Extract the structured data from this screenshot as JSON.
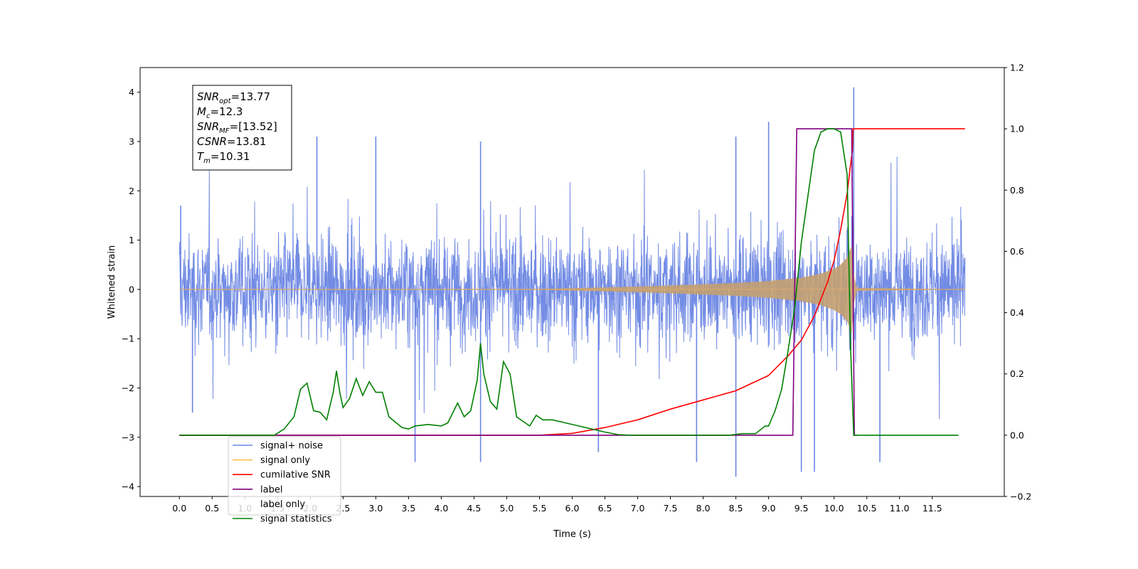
{
  "chart_data": {
    "type": "line",
    "title": "",
    "xlabel": "Time (s)",
    "ylabel_left": "Whitened strain",
    "ylabel_right": "",
    "xlim": [
      -0.6,
      12.6
    ],
    "ylim_left": [
      -4.2,
      4.5
    ],
    "ylim_right": [
      -0.2,
      1.2
    ],
    "x_ticks": [
      0.0,
      0.5,
      1.0,
      1.5,
      2.0,
      2.5,
      3.0,
      3.5,
      4.0,
      4.5,
      5.0,
      5.5,
      6.0,
      6.5,
      7.0,
      7.5,
      8.0,
      8.5,
      9.0,
      9.5,
      10.0,
      10.5,
      11.0,
      11.5
    ],
    "x_tick_labels": [
      "0.0",
      "0.5",
      "1.0",
      "1.5",
      "2.0",
      "2.5",
      "3.0",
      "3.5",
      "4.0",
      "4.5",
      "5.0",
      "5.5",
      "6.0",
      "6.5",
      "7.0",
      "7.5",
      "8.0",
      "8.5",
      "9.0",
      "9.5",
      "10.0",
      "10.5",
      "11.0",
      "11.5"
    ],
    "y_left_ticks": [
      -4,
      -3,
      -2,
      -1,
      0,
      1,
      2,
      3,
      4
    ],
    "y_left_tick_labels": [
      "−4",
      "−3",
      "−2",
      "−1",
      "0",
      "1",
      "2",
      "3",
      "4"
    ],
    "y_right_ticks": [
      -0.2,
      0.0,
      0.2,
      0.4,
      0.6,
      0.8,
      1.0,
      1.2
    ],
    "y_right_tick_labels": [
      "−0.2",
      "0.0",
      "0.2",
      "0.4",
      "0.6",
      "0.8",
      "1.0",
      "1.2"
    ],
    "grid": false,
    "legend_placement": "lower-left",
    "stats_box": [
      {
        "base": "SNR",
        "sub": "opt",
        "value": "=13.77"
      },
      {
        "base": "M",
        "sub": "c",
        "value": "=12.3"
      },
      {
        "base": "SNR",
        "sub": "MF",
        "value": "=[13.52]"
      },
      {
        "base": "CSNR",
        "sub": "",
        "value": "=13.81"
      },
      {
        "base": "T",
        "sub": "m",
        "value": "=10.31"
      }
    ],
    "series": [
      {
        "name": "signal+ noise",
        "color": "#6b86e3",
        "axis": "left",
        "description_values": "noisy whitened strain, amplitude about ±2.3 with spikes to 4.1 near t=10.3",
        "peak_x": [
          0.02,
          2.1,
          3.0,
          4.6,
          8.5,
          9.0,
          10.3
        ],
        "peak_y": [
          1.7,
          3.1,
          3.1,
          3.0,
          3.1,
          3.4,
          4.1
        ],
        "trough_x": [
          0.2,
          3.6,
          4.6,
          6.4,
          7.9,
          8.5,
          9.5,
          9.7,
          10.7
        ],
        "trough_y": [
          -2.5,
          -3.5,
          -3.5,
          -3.3,
          -3.5,
          -3.8,
          -3.7,
          -3.7,
          -3.5
        ]
      },
      {
        "name": "signal only",
        "color": "#ffc04d",
        "axis": "left",
        "envelope_x": [
          0.0,
          5.5,
          6.5,
          7.5,
          8.5,
          9.0,
          9.5,
          9.8,
          10.0,
          10.1,
          10.2,
          10.27,
          10.3,
          10.35,
          12.0
        ],
        "envelope_y": [
          0.0,
          0.01,
          0.04,
          0.08,
          0.13,
          0.17,
          0.24,
          0.32,
          0.42,
          0.5,
          0.65,
          0.9,
          0.3,
          0.03,
          0.0
        ]
      },
      {
        "name": "cumilative SNR",
        "color": "#ff0000",
        "axis": "right",
        "x": [
          0.0,
          5.0,
          5.5,
          6.0,
          6.5,
          7.0,
          7.5,
          8.0,
          8.5,
          9.0,
          9.3,
          9.5,
          9.7,
          9.9,
          10.0,
          10.1,
          10.2,
          10.25,
          10.28,
          10.29,
          10.3,
          11.0,
          12.0
        ],
        "y": [
          0.0,
          0.0,
          0.0,
          0.006,
          0.025,
          0.05,
          0.085,
          0.115,
          0.145,
          0.195,
          0.26,
          0.31,
          0.39,
          0.5,
          0.57,
          0.67,
          0.79,
          0.88,
          0.93,
          1.0,
          1.0,
          1.0,
          1.0
        ]
      },
      {
        "name": "label",
        "color": "#800080",
        "axis": "right",
        "x": [
          0.0,
          9.37,
          9.43,
          10.27,
          10.31,
          10.35
        ],
        "y": [
          0.0,
          0.0,
          1.0,
          1.0,
          0.0,
          0.0
        ]
      },
      {
        "name": "label only",
        "color": "#ffffff",
        "axis": "right",
        "x": [],
        "y": []
      },
      {
        "name": "signal statistics",
        "color": "#008000",
        "axis": "right",
        "x": [
          0.0,
          1.45,
          1.6,
          1.75,
          1.85,
          1.95,
          2.05,
          2.15,
          2.25,
          2.35,
          2.4,
          2.45,
          2.5,
          2.6,
          2.7,
          2.8,
          2.9,
          3.0,
          3.1,
          3.2,
          3.4,
          3.5,
          3.6,
          3.8,
          4.0,
          4.1,
          4.25,
          4.35,
          4.45,
          4.55,
          4.6,
          4.65,
          4.75,
          4.85,
          4.95,
          5.05,
          5.15,
          5.25,
          5.35,
          5.45,
          5.55,
          5.7,
          5.9,
          6.1,
          6.3,
          6.5,
          6.7,
          6.9,
          7.5,
          8.0,
          8.4,
          8.6,
          8.8,
          8.95,
          9.0,
          9.1,
          9.2,
          9.3,
          9.4,
          9.5,
          9.6,
          9.7,
          9.8,
          9.9,
          10.0,
          10.1,
          10.2,
          10.25,
          10.3,
          10.32,
          10.35,
          11.9
        ],
        "y": [
          0.0,
          0.0,
          0.02,
          0.06,
          0.15,
          0.17,
          0.08,
          0.075,
          0.05,
          0.14,
          0.21,
          0.14,
          0.09,
          0.12,
          0.185,
          0.13,
          0.175,
          0.14,
          0.14,
          0.06,
          0.025,
          0.02,
          0.03,
          0.035,
          0.03,
          0.04,
          0.105,
          0.06,
          0.08,
          0.18,
          0.3,
          0.2,
          0.11,
          0.085,
          0.24,
          0.2,
          0.06,
          0.045,
          0.03,
          0.065,
          0.05,
          0.05,
          0.04,
          0.03,
          0.02,
          0.01,
          0.002,
          0.0,
          0.0,
          0.0,
          0.0,
          0.005,
          0.005,
          0.03,
          0.03,
          0.08,
          0.15,
          0.28,
          0.42,
          0.63,
          0.78,
          0.93,
          0.99,
          1.0,
          1.0,
          0.99,
          0.85,
          0.3,
          0.0,
          0.0,
          0.0,
          0.0
        ]
      }
    ]
  }
}
